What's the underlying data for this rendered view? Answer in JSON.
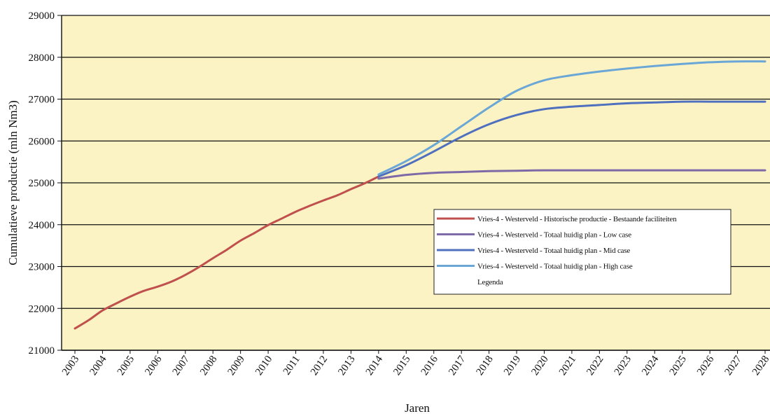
{
  "chart_data": {
    "type": "line",
    "title": "",
    "xlabel": "Jaren",
    "ylabel": "Cumulatieve productie (mln Nm3)",
    "ylim": [
      21000,
      29000
    ],
    "yticks": [
      21000,
      22000,
      23000,
      24000,
      25000,
      26000,
      27000,
      28000,
      29000
    ],
    "categories": [
      "2003",
      "2004",
      "2005",
      "2006",
      "2007",
      "2008",
      "2009",
      "2010",
      "2011",
      "2012",
      "2013",
      "2014",
      "2015",
      "2016",
      "2017",
      "2018",
      "2019",
      "2020",
      "2021",
      "2022",
      "2023",
      "2024",
      "2025",
      "2026",
      "2027",
      "2028"
    ],
    "grid": "horizontal",
    "legend_placement": "center-right",
    "legend_title": "Legenda",
    "plot_background": "#fbf3c4",
    "series": [
      {
        "name": "Vries-4 - Westerveld - Historische productie - Bestaande faciliteiten",
        "color": "#c0504d",
        "x": [
          2003,
          2003.5,
          2004,
          2004.5,
          2005,
          2005.5,
          2006,
          2006.5,
          2007,
          2007.5,
          2008,
          2008.5,
          2009,
          2009.5,
          2010,
          2010.5,
          2011,
          2011.5,
          2012,
          2012.5,
          2013,
          2013.5,
          2014
        ],
        "values": [
          21520,
          21720,
          21950,
          22120,
          22280,
          22420,
          22520,
          22640,
          22800,
          22990,
          23200,
          23400,
          23620,
          23800,
          23990,
          24150,
          24310,
          24450,
          24580,
          24700,
          24850,
          24990,
          25150
        ]
      },
      {
        "name": "Vries-4 - Westerveld - Totaal huidig plan - Low case",
        "color": "#7f6aa8",
        "x": [
          2014,
          2015,
          2016,
          2017,
          2018,
          2019,
          2020,
          2021,
          2022,
          2023,
          2024,
          2025,
          2026,
          2027,
          2028
        ],
        "values": [
          25100,
          25190,
          25240,
          25260,
          25280,
          25290,
          25300,
          25300,
          25300,
          25300,
          25300,
          25300,
          25300,
          25300,
          25300
        ]
      },
      {
        "name": "Vries-4 - Westerveld - Totaal huidig plan - Mid case",
        "color": "#4f6fbf",
        "x": [
          2014,
          2015,
          2016,
          2017,
          2018,
          2019,
          2020,
          2021,
          2022,
          2023,
          2024,
          2025,
          2026,
          2027,
          2028
        ],
        "values": [
          25150,
          25420,
          25750,
          26100,
          26400,
          26620,
          26760,
          26820,
          26860,
          26900,
          26920,
          26940,
          26940,
          26940,
          26940
        ]
      },
      {
        "name": "Vries-4 - Westerveld - Totaal huidig plan - High case",
        "color": "#6aa6d6",
        "x": [
          2014,
          2015,
          2016,
          2017,
          2018,
          2019,
          2020,
          2021,
          2022,
          2023,
          2024,
          2025,
          2026,
          2027,
          2028
        ],
        "values": [
          25200,
          25520,
          25900,
          26350,
          26800,
          27200,
          27450,
          27570,
          27660,
          27730,
          27790,
          27840,
          27880,
          27900,
          27900
        ]
      }
    ]
  }
}
